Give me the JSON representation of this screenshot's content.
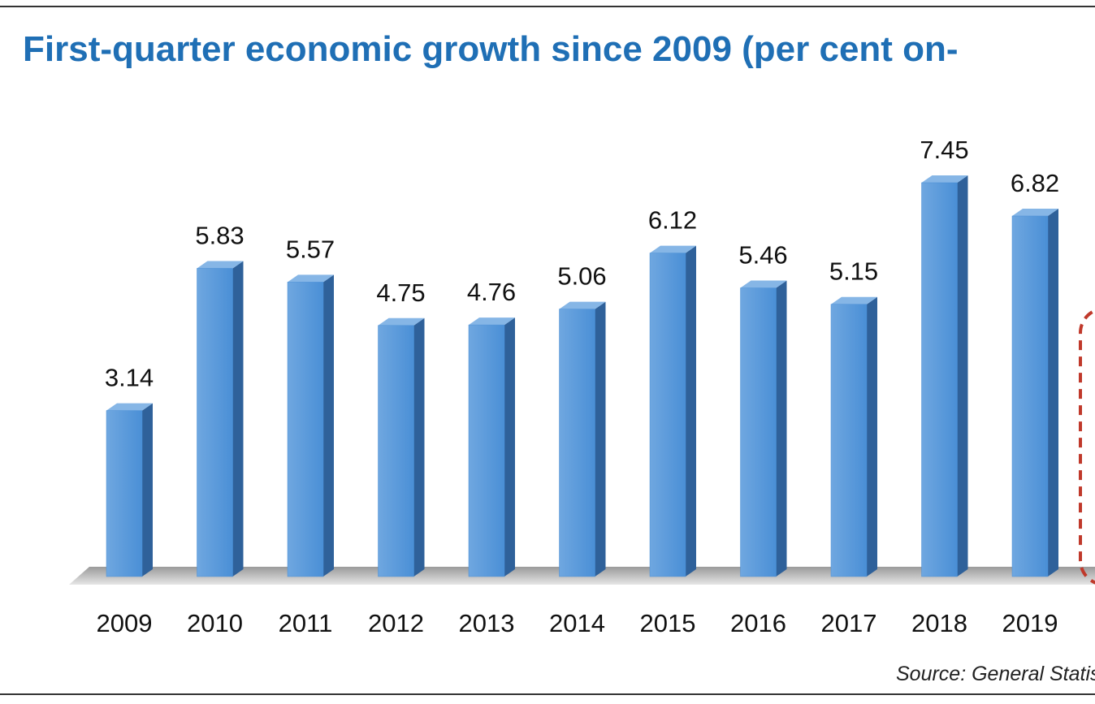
{
  "chart_data": {
    "type": "bar3d",
    "title": "First-quarter economic growth since 2009 (per cent on-",
    "source": "Source: General Statis",
    "categories": [
      "2009",
      "2010",
      "2011",
      "2012",
      "2013",
      "2014",
      "2015",
      "2016",
      "2017",
      "2018",
      "2019"
    ],
    "values": [
      3.14,
      5.83,
      5.57,
      4.75,
      4.76,
      5.06,
      6.12,
      5.46,
      5.15,
      7.45,
      6.82
    ],
    "color": "#4a8fd6"
  }
}
